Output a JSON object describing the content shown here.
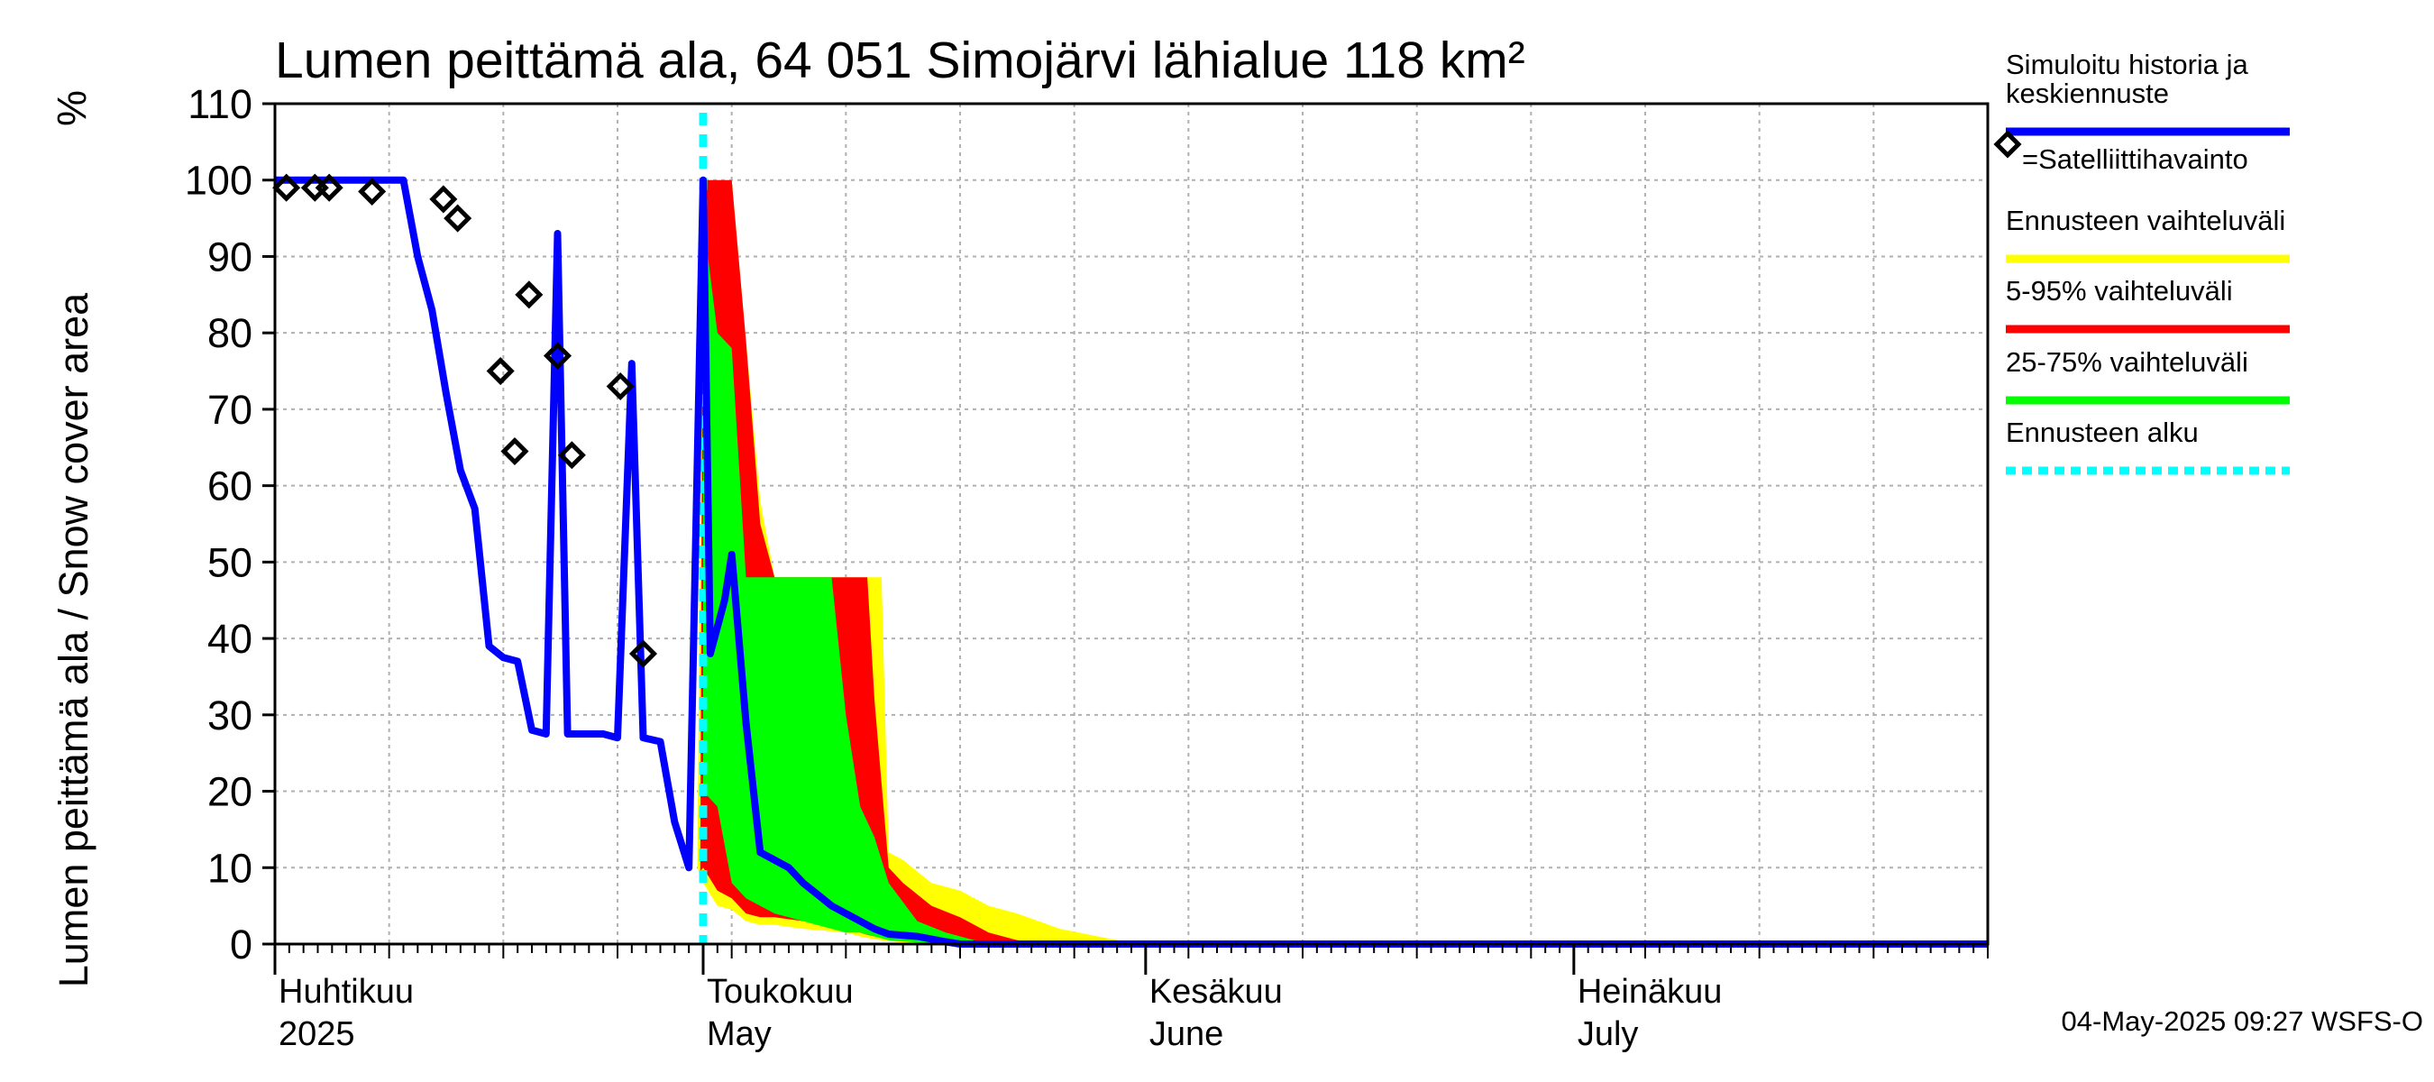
{
  "chart_data": {
    "type": "area",
    "title": "Lumen peittämä ala, 64 051 Simojärvi lähialue 118 km²",
    "ylabel": "Lumen peittämä ala / Snow cover area",
    "yunit": "%",
    "ylim": [
      0,
      110
    ],
    "yticks": [
      0,
      10,
      20,
      30,
      40,
      50,
      60,
      70,
      80,
      90,
      100,
      110
    ],
    "xlim": [
      0,
      120
    ],
    "x_unit": "days since 2025-04-01",
    "forecast_start": 30,
    "month_ticks": [
      {
        "day": 0,
        "fi": "Huhtikuu",
        "en": "2025"
      },
      {
        "day": 30,
        "fi": "Toukokuu",
        "en": "May"
      },
      {
        "day": 61,
        "fi": "Kesäkuu",
        "en": "June"
      },
      {
        "day": 91,
        "fi": "Heinäkuu",
        "en": "July"
      }
    ],
    "footer": "04-May-2025 09:27 WSFS-O",
    "colors": {
      "history": "#0000ff",
      "obs": "#000000",
      "range_full": "#ffff00",
      "range_5_95": "#ff0000",
      "range_25_75": "#00ff00",
      "forecast_start": "#00ffff",
      "grid": "#b0b0b0"
    },
    "legend": [
      {
        "label": "Simuloitu historia ja keskiennuste",
        "lines": [
          "Simuloitu historia ja",
          "keskiennuste"
        ],
        "kind": "line",
        "color": "#0000ff"
      },
      {
        "label": "=Satelliittihavainto",
        "lines": [
          "=Satelliittihavainto"
        ],
        "kind": "marker",
        "color": "#000000"
      },
      {
        "label": "Ennusteen vaihteluväli",
        "lines": [
          "Ennusteen vaihteluväli"
        ],
        "kind": "line",
        "color": "#ffff00"
      },
      {
        "label": "5-95% vaihteluväli",
        "lines": [
          "5-95% vaihteluväli"
        ],
        "kind": "line",
        "color": "#ff0000"
      },
      {
        "label": "25-75% vaihteluväli",
        "lines": [
          "25-75% vaihteluväli"
        ],
        "kind": "line",
        "color": "#00ff00"
      },
      {
        "label": "Ennusteen alku",
        "lines": [
          "Ennusteen alku"
        ],
        "kind": "dashed",
        "color": "#00ffff"
      }
    ],
    "history": [
      [
        0,
        100
      ],
      [
        9,
        100
      ],
      [
        10,
        90
      ],
      [
        11,
        83
      ],
      [
        12,
        72
      ],
      [
        13,
        62
      ],
      [
        14,
        57
      ],
      [
        15,
        39
      ],
      [
        16,
        37.5
      ],
      [
        17,
        37
      ],
      [
        18,
        28
      ],
      [
        19,
        27.5
      ],
      [
        19.8,
        93
      ],
      [
        20.5,
        27.5
      ],
      [
        23,
        27.5
      ],
      [
        24,
        27
      ],
      [
        25,
        76
      ],
      [
        25.8,
        27
      ],
      [
        27,
        26.5
      ],
      [
        28,
        16
      ],
      [
        29,
        10
      ],
      [
        30,
        100
      ],
      [
        30.5,
        38
      ],
      [
        31.5,
        45
      ],
      [
        32,
        51
      ],
      [
        33,
        29
      ],
      [
        34,
        12
      ],
      [
        35,
        11
      ],
      [
        36,
        10
      ],
      [
        37,
        8
      ],
      [
        38,
        6.5
      ],
      [
        39,
        5
      ],
      [
        40,
        4
      ],
      [
        41,
        3
      ],
      [
        42,
        2
      ],
      [
        43,
        1.3
      ],
      [
        45,
        1
      ],
      [
        47,
        0.3
      ],
      [
        48,
        0
      ],
      [
        120,
        0
      ]
    ],
    "band_full": {
      "x": [
        29.6,
        30.0,
        31.0,
        32.0,
        33.0,
        34.0,
        35.0,
        37.0,
        40.0,
        41.0,
        41.5,
        42.5,
        43.0,
        44.0,
        46.0,
        48.0,
        50.0,
        52.0,
        55.0,
        59.0,
        62.0,
        120.0
      ],
      "upper": [
        12,
        100,
        100,
        100,
        79,
        58,
        48,
        48,
        48,
        48,
        48,
        48,
        12,
        11,
        8,
        7,
        5,
        4,
        2,
        0.5,
        0,
        0
      ],
      "lower": [
        10,
        8,
        5,
        4.5,
        3,
        2.5,
        2.5,
        2,
        1.5,
        1,
        0.8,
        0.5,
        0.4,
        0.2,
        0,
        0,
        0,
        0,
        0,
        0,
        0,
        0
      ]
    },
    "band_5_95": {
      "x": [
        29.8,
        30.0,
        31.0,
        32.0,
        33.0,
        34.0,
        35.0,
        37.0,
        40.0,
        41.0,
        41.5,
        42.0,
        43.0,
        44.0,
        46.0,
        48.0,
        50.0,
        52.0,
        55.0,
        120.0
      ],
      "upper": [
        11,
        100,
        100,
        100,
        79,
        55,
        48,
        48,
        48,
        48,
        48,
        32,
        10,
        8,
        5,
        3.5,
        1.5,
        0.5,
        0,
        0
      ],
      "lower": [
        9.5,
        10,
        7,
        6,
        4,
        3.5,
        3.5,
        3,
        2,
        1.5,
        1.2,
        1,
        0.8,
        0.5,
        0.2,
        0,
        0,
        0,
        0,
        0
      ]
    },
    "band_25_75": {
      "x": [
        30.0,
        31.0,
        32.0,
        33.0,
        34.0,
        35.0,
        37.0,
        39.0,
        40.0,
        41.0,
        42.0,
        43.0,
        45.0,
        47.0,
        49.0,
        51.0,
        120.0
      ],
      "upper": [
        95,
        80,
        78,
        48,
        48,
        48,
        48,
        48,
        30,
        18,
        14,
        8,
        3,
        1.5,
        0.5,
        0,
        0
      ],
      "lower": [
        20,
        18,
        8,
        6,
        5,
        4,
        3,
        2,
        1.5,
        1.5,
        1,
        0.5,
        0.2,
        0,
        0,
        0,
        0
      ]
    },
    "observations": [
      [
        0.8,
        99
      ],
      [
        2.8,
        99
      ],
      [
        3.8,
        99
      ],
      [
        6.8,
        98.5
      ],
      [
        11.8,
        97.5
      ],
      [
        12.8,
        95
      ],
      [
        15.8,
        75
      ],
      [
        16.8,
        64.5
      ],
      [
        17.8,
        85
      ],
      [
        19.8,
        77
      ],
      [
        20.8,
        64
      ],
      [
        24.2,
        73
      ],
      [
        25.8,
        38
      ]
    ]
  }
}
